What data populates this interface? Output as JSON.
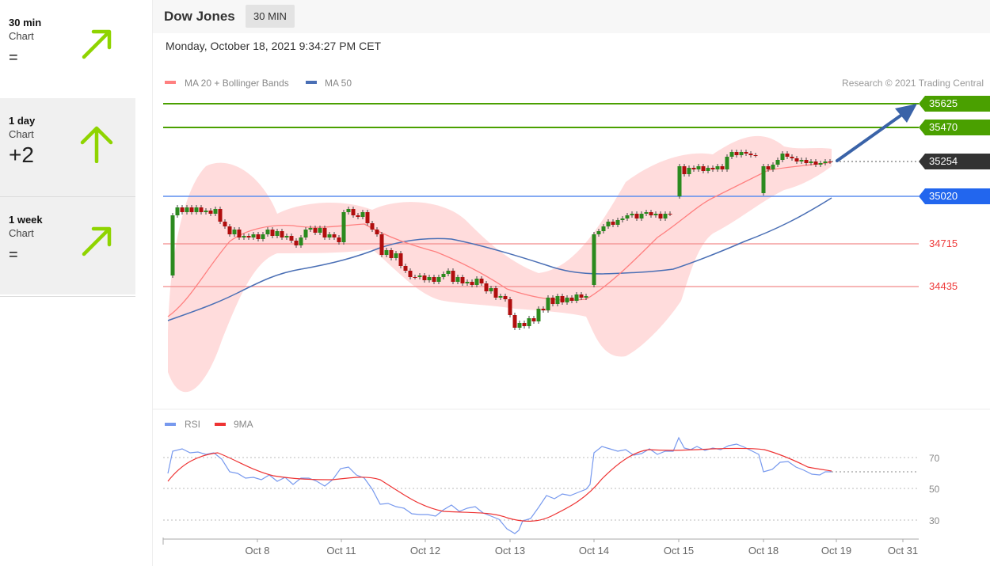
{
  "timeframes": [
    {
      "label": "30 min",
      "sub": "Chart",
      "score": "=",
      "direction": "up-right",
      "icon": "arrow-up-right-icon"
    },
    {
      "label": "1 day",
      "sub": "Chart",
      "score": "+2",
      "direction": "up",
      "icon": "arrow-up-icon"
    },
    {
      "label": "1 week",
      "sub": "Chart",
      "score": "=",
      "direction": "up-right",
      "icon": "arrow-up-right-icon"
    }
  ],
  "header": {
    "title": "Dow Jones",
    "interval": "30 MIN",
    "datetime": "Monday, October 18, 2021 9:34:27 PM CET"
  },
  "legend": {
    "ma20": "MA 20 + Bollinger Bands",
    "ma50": "MA 50",
    "credit": "Research © 2021 Trading Central"
  },
  "rsi_legend": {
    "rsi": "RSI",
    "ma": "9MA"
  },
  "colors": {
    "accent": "#8fd400",
    "resistance": "#4aa000",
    "support": "#2266ee",
    "level": "#ee3b3b",
    "ma20": "#ff8080",
    "ma50": "#4a6fb5",
    "band": "#ffd6d6",
    "candle_up": "#2b8a1e",
    "candle_down": "#b00e0e",
    "current": "#333333",
    "rsi": "#7799ee",
    "rsi_ma": "#ee3333"
  },
  "chart_data": {
    "type": "candlestick",
    "x_labels": [
      "Oct 8",
      "Oct 11",
      "Oct 12",
      "Oct 13",
      "Oct 14",
      "Oct 15",
      "Oct 18",
      "Oct 19",
      "Oct 31"
    ],
    "levels": [
      {
        "value": 35625,
        "label": "35625",
        "kind": "target"
      },
      {
        "value": 35470,
        "label": "35470",
        "kind": "resistance"
      },
      {
        "value": 35254,
        "label": "35254",
        "kind": "current"
      },
      {
        "value": 35020,
        "label": "35020",
        "kind": "pivot"
      },
      {
        "value": 34715,
        "label": "34715",
        "kind": "support"
      },
      {
        "value": 34435,
        "label": "34435",
        "kind": "support"
      }
    ],
    "rsi_ticks": [
      70,
      50,
      30
    ],
    "rsi_current": 61
  }
}
